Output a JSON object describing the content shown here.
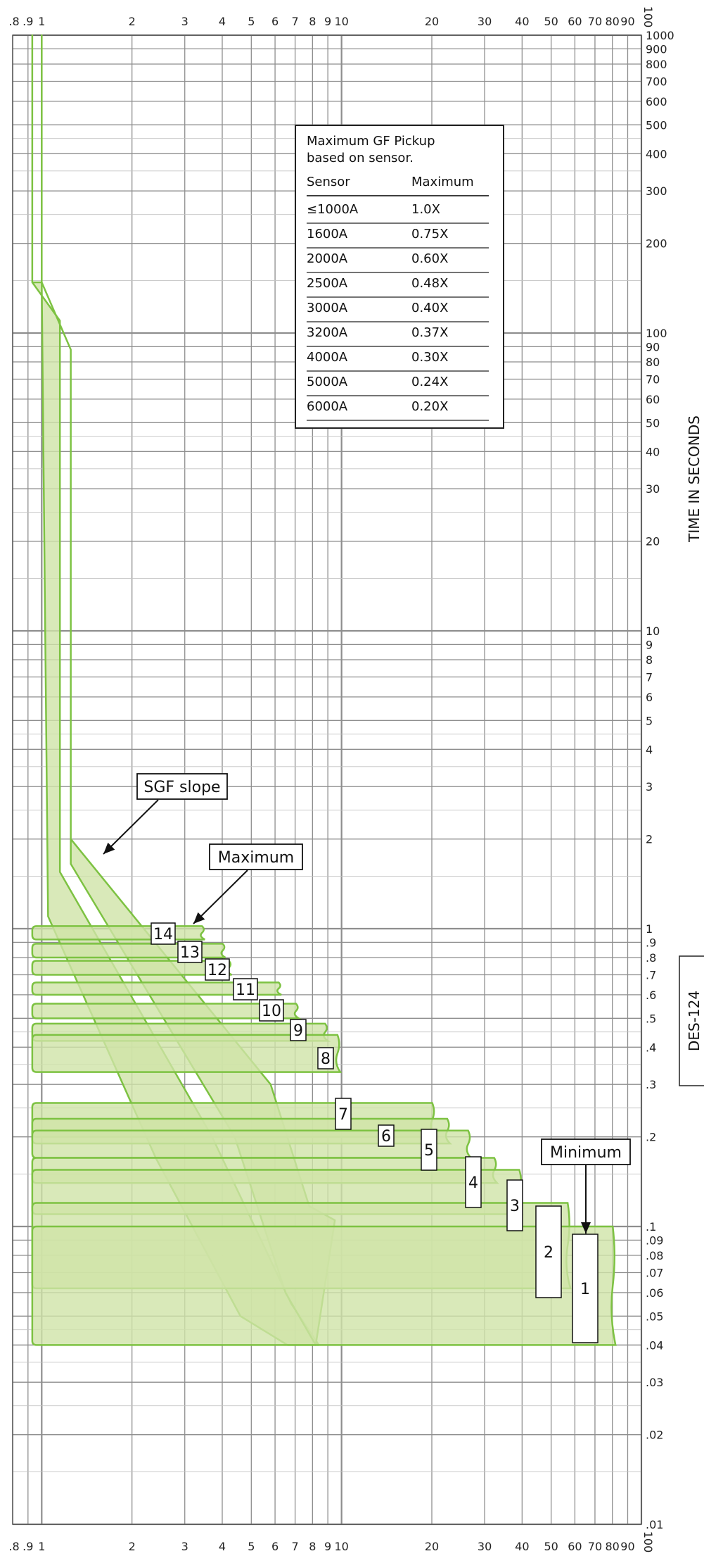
{
  "chart_data": {
    "type": "line",
    "scale": "log-log",
    "x_tick_labels": [
      ".8",
      ".9",
      "1",
      "2",
      "3",
      "4",
      "5",
      "6",
      "7",
      "8",
      "9",
      "10",
      "20",
      "30",
      "40",
      "50",
      "60",
      "70",
      "80",
      "90",
      "100"
    ],
    "y_tick_labels": [
      "1000",
      "900",
      "800",
      "700",
      "600",
      "500",
      "400",
      "300",
      "200",
      "100",
      "90",
      "80",
      "70",
      "60",
      "50",
      "40",
      "30",
      "20",
      "10",
      "9",
      "8",
      "7",
      "6",
      "5",
      "4",
      "3",
      "2",
      "1",
      ".9",
      ".8",
      ".7",
      ".6",
      ".5",
      ".4",
      ".3",
      ".2",
      ".1",
      ".09",
      ".08",
      ".07",
      ".06",
      ".05",
      ".04",
      ".03",
      ".02",
      ".01"
    ],
    "ylabel": "TIME IN SECONDS",
    "xlim": [
      0.8,
      100
    ],
    "ylim": [
      0.01,
      1000
    ],
    "band_color": "#cfe3a8",
    "band_edge_color": "#7dc242",
    "grid": true,
    "sgf_band": {
      "upper_x": [
        1.0,
        1.0,
        1.25,
        1.25,
        5.8,
        7.8,
        9.5
      ],
      "upper_y": [
        1000,
        148,
        88,
        2.0,
        0.3,
        0.117,
        0.105
      ],
      "lower_x": [
        1.0,
        1.0,
        1.25,
        1.25,
        4.4,
        6.5,
        8.2
      ],
      "lower_y": [
        1000,
        148,
        88,
        1.65,
        0.2,
        0.06,
        0.04
      ]
    },
    "sgf_slope": {
      "upper_x": [
        0.93,
        0.93,
        1.15,
        1.15,
        3.7,
        6.8,
        8.4
      ],
      "upper_y": [
        1000,
        148,
        110,
        1.55,
        0.2,
        0.055,
        0.04
      ],
      "lower_x": [
        0.93,
        0.93,
        1.0,
        1.05,
        2.4,
        4.6,
        6.6
      ],
      "lower_y": [
        1000,
        148,
        148,
        1.1,
        0.17,
        0.05,
        0.04
      ]
    },
    "bands": [
      {
        "label": "14",
        "x_max": 3.5,
        "t_min": 0.92,
        "t_max": 1.02
      },
      {
        "label": "13",
        "x_max": 4.1,
        "t_min": 0.8,
        "t_max": 0.89
      },
      {
        "label": "12",
        "x_max": 4.3,
        "t_min": 0.7,
        "t_max": 0.78
      },
      {
        "label": "11",
        "x_max": 6.3,
        "t_min": 0.6,
        "t_max": 0.66
      },
      {
        "label": "10",
        "x_max": 7.2,
        "t_min": 0.5,
        "t_max": 0.56
      },
      {
        "label": "9",
        "x_max": 9.0,
        "t_min": 0.42,
        "t_max": 0.48
      },
      {
        "label": "8",
        "x_max": 9.9,
        "t_min": 0.33,
        "t_max": 0.44
      },
      {
        "label": "7",
        "x_max": 20.5,
        "t_min": 0.2,
        "t_max": 0.26
      },
      {
        "label": "6",
        "x_max": 23.0,
        "t_min": 0.19,
        "t_max": 0.23
      },
      {
        "label": "5",
        "x_max": 27.0,
        "t_min": 0.17,
        "t_max": 0.21
      },
      {
        "label": "4",
        "x_max": 33.0,
        "t_min": 0.14,
        "t_max": 0.17
      },
      {
        "label": "3",
        "x_max": 40.0,
        "t_min": 0.11,
        "t_max": 0.155
      },
      {
        "label": "2",
        "x_max": 58.0,
        "t_min": 0.062,
        "t_max": 0.12
      },
      {
        "label": "1",
        "x_max": 82.0,
        "t_min": 0.04,
        "t_max": 0.1
      }
    ],
    "annotations": [
      "SGF slope",
      "Maximum",
      "Minimum"
    ]
  },
  "table": {
    "title_line1": "Maximum GF Pickup",
    "title_line2": "based on sensor.",
    "headers": [
      "Sensor",
      "Maximum"
    ],
    "rows": [
      [
        "≤1000A",
        "1.0X"
      ],
      [
        "1600A",
        "0.75X"
      ],
      [
        "2000A",
        "0.60X"
      ],
      [
        "2500A",
        "0.48X"
      ],
      [
        "3000A",
        "0.40X"
      ],
      [
        "3200A",
        "0.37X"
      ],
      [
        "4000A",
        "0.30X"
      ],
      [
        "5000A",
        "0.24X"
      ],
      [
        "6000A",
        "0.20X"
      ]
    ]
  },
  "doc_tag": "DES-124"
}
